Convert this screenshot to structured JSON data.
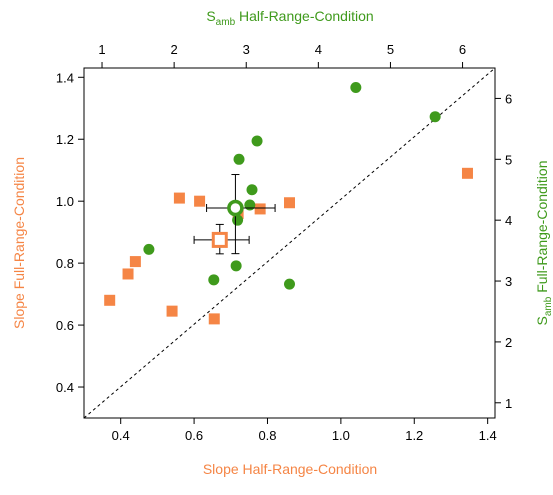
{
  "chart_data": {
    "type": "scatter",
    "axes": {
      "bottom": {
        "label": "Slope Half-Range-Condition",
        "range": [
          0.3,
          1.42
        ],
        "ticks": [
          "0.4",
          "0.6",
          "0.8",
          "1.0",
          "1.2",
          "1.4"
        ]
      },
      "left": {
        "label": "Slope Full-Range-Condition",
        "range": [
          0.3,
          1.43
        ],
        "ticks": [
          "0.4",
          "0.6",
          "0.8",
          "1.0",
          "1.2",
          "1.4"
        ]
      },
      "top": {
        "label_main": "S",
        "label_sub": "amb",
        "label_rest": " Half-Range-Condition",
        "range": [
          0.75,
          6.45
        ],
        "ticks": [
          "1",
          "2",
          "3",
          "4",
          "5",
          "6"
        ]
      },
      "right": {
        "label_main": "S",
        "label_sub": "amb",
        "label_rest": " Full-Range-Condition",
        "range": [
          0.75,
          6.5
        ],
        "ticks": [
          "1",
          "2",
          "3",
          "4",
          "5",
          "6"
        ]
      }
    },
    "grid": false,
    "reference_line": {
      "style": "dashed",
      "from": [
        0.3,
        0.3
      ],
      "to": [
        1.42,
        1.43
      ]
    },
    "series": [
      {
        "axes": "bottom-left",
        "marker": "square",
        "color": "#f58545",
        "points": [
          {
            "x": 0.37,
            "y": 0.68
          },
          {
            "x": 0.42,
            "y": 0.765
          },
          {
            "x": 0.44,
            "y": 0.805
          },
          {
            "x": 0.54,
            "y": 0.645
          },
          {
            "x": 0.56,
            "y": 1.01
          },
          {
            "x": 0.615,
            "y": 1.0
          },
          {
            "x": 0.655,
            "y": 0.62
          },
          {
            "x": 0.72,
            "y": 0.96
          },
          {
            "x": 0.78,
            "y": 0.975
          },
          {
            "x": 0.86,
            "y": 0.995
          },
          {
            "x": 1.345,
            "y": 1.09
          }
        ],
        "mean": {
          "x": 0.67,
          "y": 0.875,
          "x_err": [
            0.6,
            0.75
          ],
          "y_err": [
            0.83,
            0.925
          ]
        }
      },
      {
        "axes": "top-right",
        "marker": "circle",
        "color": "#3f9a1c",
        "points": [
          {
            "x": 1.65,
            "y": 3.52
          },
          {
            "x": 2.55,
            "y": 3.02
          },
          {
            "x": 2.86,
            "y": 3.25
          },
          {
            "x": 2.88,
            "y": 4.0
          },
          {
            "x": 2.9,
            "y": 5.0
          },
          {
            "x": 3.05,
            "y": 4.25
          },
          {
            "x": 3.08,
            "y": 4.5
          },
          {
            "x": 3.15,
            "y": 5.3
          },
          {
            "x": 3.6,
            "y": 2.95
          },
          {
            "x": 4.52,
            "y": 6.18
          },
          {
            "x": 5.62,
            "y": 5.7
          }
        ],
        "mean": {
          "x": 2.85,
          "y": 4.2,
          "x_err": [
            2.45,
            3.4
          ],
          "y_err": [
            3.45,
            4.75
          ]
        }
      }
    ]
  }
}
